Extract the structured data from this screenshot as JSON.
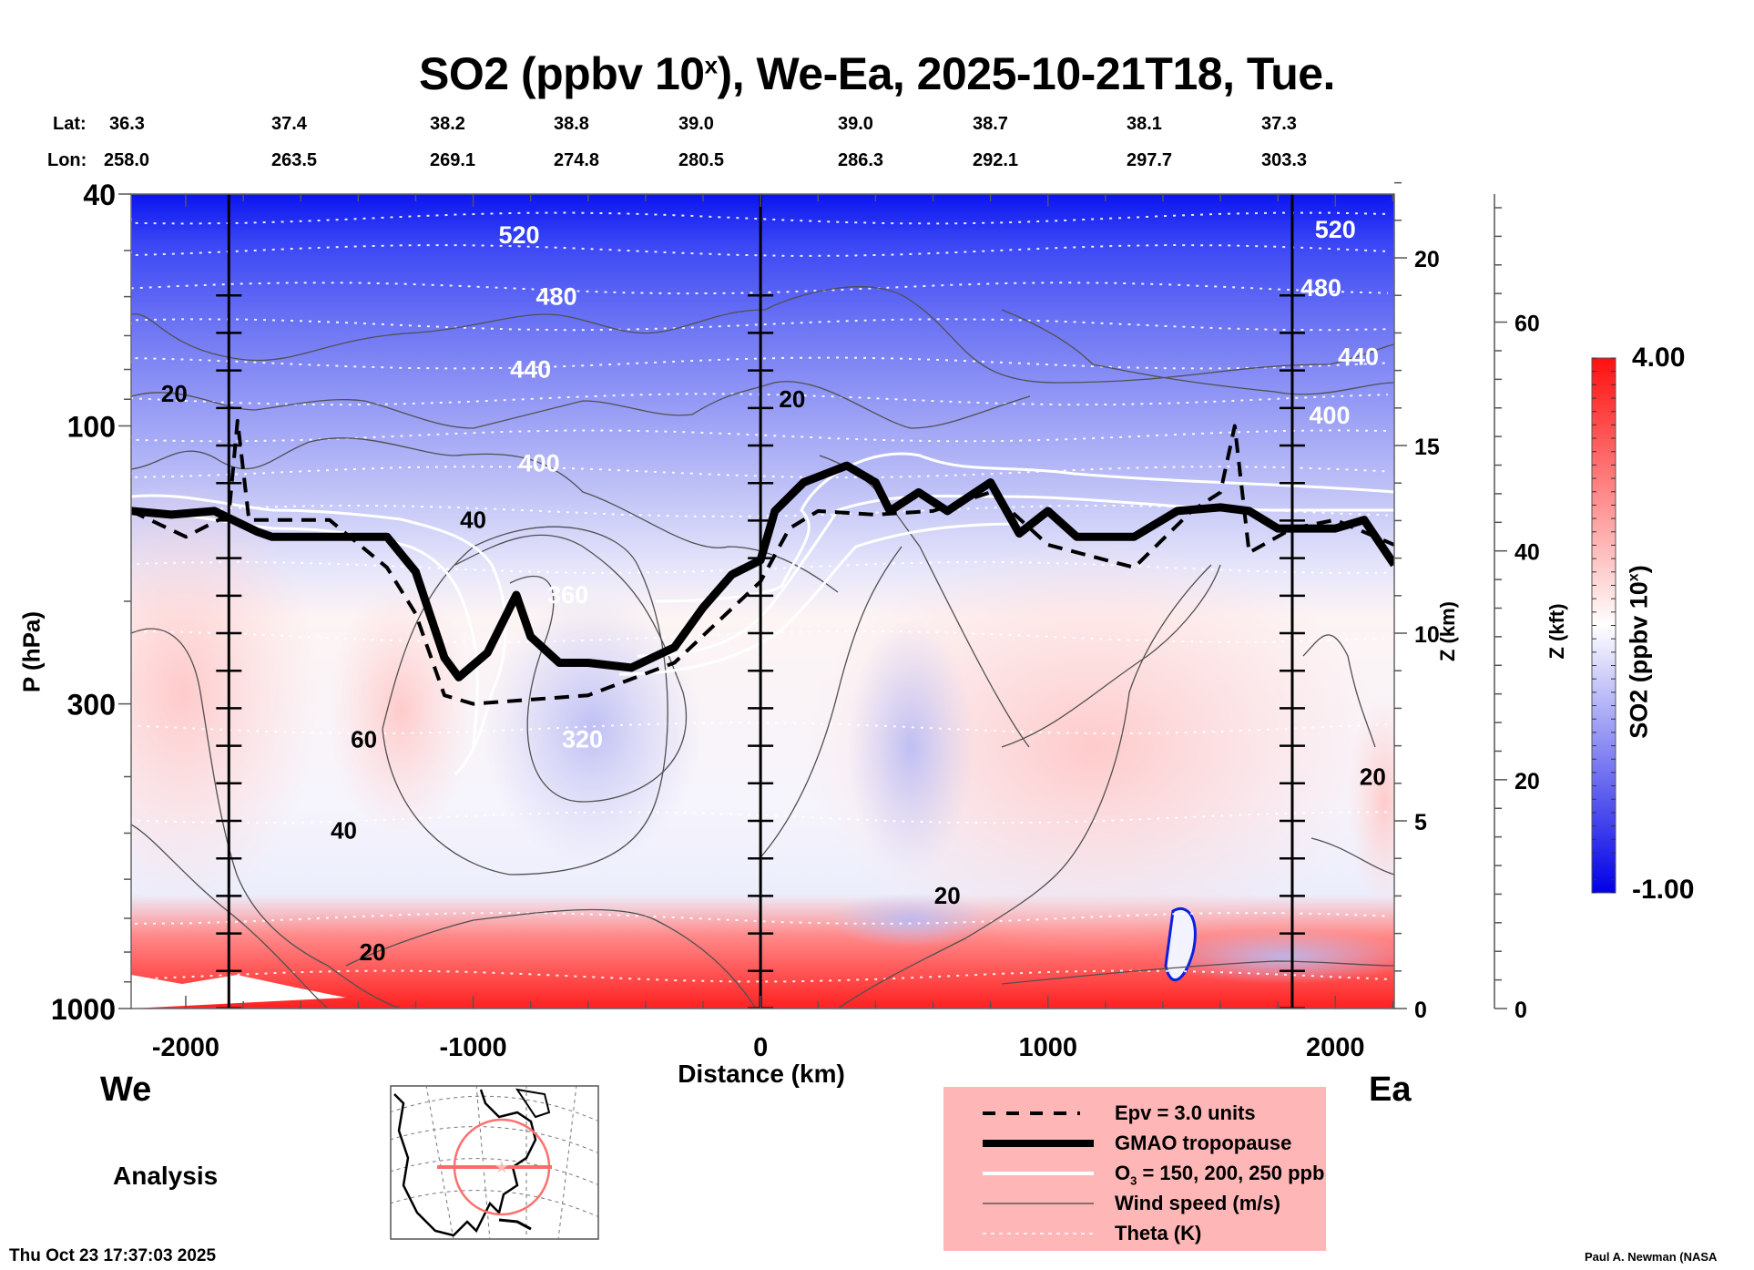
{
  "title": {
    "prefix": "SO2 (ppbv 10",
    "superscript": "x",
    "suffix": "), We-Ea, 2025-10-21T18, Tue."
  },
  "coords": {
    "lat_label": "Lat:",
    "lon_label": "Lon:",
    "lat": [
      "36.3",
      "37.4",
      "38.2",
      "38.8",
      "39.0",
      "39.0",
      "38.7",
      "38.1",
      "37.3"
    ],
    "lon": [
      "258.0",
      "263.5",
      "269.1",
      "274.8",
      "280.5",
      "286.3",
      "292.1",
      "297.7",
      "303.3"
    ]
  },
  "labels": {
    "west": "We",
    "east": "Ea",
    "analysis": "Analysis",
    "timestamp": "Thu Oct 23 17:37:03 2025",
    "credit": "Paul A. Newman (NASA"
  },
  "legend": {
    "items": [
      {
        "style": "dashed",
        "label": "Epv = 3.0 units"
      },
      {
        "style": "thick",
        "label": "GMAO tropopause"
      },
      {
        "style": "white",
        "label_pre": "O",
        "label_sub": "3",
        "label_post": " = 150, 200, 250 ppb"
      },
      {
        "style": "thin",
        "label": "Wind speed (m/s)"
      },
      {
        "style": "dotted",
        "label": "Theta (K)"
      }
    ]
  },
  "colorbar": {
    "title_prefix": "SO2 (ppbv 10",
    "title_sup": "x",
    "title_suffix": ")",
    "max_label": "4.00",
    "min_label": "-1.00",
    "min": -1.0,
    "max": 4.0,
    "low_color": "#0000e6",
    "mid_color": "#ffffff",
    "high_color": "#ff1010"
  },
  "chart_data": {
    "type": "heatmap",
    "title": "SO2 (ppbv 10^x), We-Ea, 2025-10-21T18, Tue.",
    "xlabel": "Distance (km)",
    "ylabel": "P (hPa)",
    "y2label": "Z (km)",
    "y3label": "Z (kft)",
    "xlim": [
      -2190,
      2205
    ],
    "ylim_hpa": [
      1000,
      40
    ],
    "x_ticks": [
      -2000,
      -1000,
      0,
      1000,
      2000
    ],
    "x_tick_labels": [
      "-2000",
      "-1000",
      "0",
      "1000",
      "2000"
    ],
    "y_ticks_hpa": [
      40,
      100,
      300,
      1000
    ],
    "y_tick_labels": [
      "40",
      "100",
      "300",
      "1000"
    ],
    "z_km_ticks": [
      0,
      5,
      10,
      15,
      20
    ],
    "z_km_tick_labels": [
      "0",
      "5",
      "10",
      "15",
      "20"
    ],
    "z_kft_ticks": [
      0,
      20,
      40,
      60
    ],
    "z_kft_tick_labels": [
      "0",
      "20",
      "40",
      "60"
    ],
    "vertical_markers_km": [
      -1850,
      0,
      1850
    ],
    "theta_labels": [
      {
        "value": "520",
        "x_km": -840,
        "p": 47
      },
      {
        "value": "480",
        "x_km": -710,
        "p": 60
      },
      {
        "value": "440",
        "x_km": -800,
        "p": 80
      },
      {
        "value": "400",
        "x_km": -770,
        "p": 116
      },
      {
        "value": "360",
        "x_km": -670,
        "p": 195
      },
      {
        "value": "320",
        "x_km": -620,
        "p": 345
      },
      {
        "value": "520",
        "x_km": 2000,
        "p": 46
      },
      {
        "value": "480",
        "x_km": 1950,
        "p": 58
      },
      {
        "value": "440",
        "x_km": 2080,
        "p": 76
      },
      {
        "value": "400",
        "x_km": 1980,
        "p": 96
      }
    ],
    "wind_labels": [
      {
        "value": "20",
        "x_km": -2040,
        "p": 88
      },
      {
        "value": "40",
        "x_km": -1000,
        "p": 145
      },
      {
        "value": "60",
        "x_km": -1380,
        "p": 345
      },
      {
        "value": "40",
        "x_km": -1450,
        "p": 495
      },
      {
        "value": "20",
        "x_km": -1350,
        "p": 800
      },
      {
        "value": "20",
        "x_km": 110,
        "p": 90
      },
      {
        "value": "20",
        "x_km": 650,
        "p": 640
      },
      {
        "value": "20",
        "x_km": 2130,
        "p": 400
      }
    ],
    "tropopause_hpa": {
      "x": [
        -2190,
        -2050,
        -1900,
        -1750,
        -1700,
        -1500,
        -1300,
        -1200,
        -1100,
        -1050,
        -950,
        -850,
        -800,
        -700,
        -600,
        -450,
        -300,
        -200,
        -100,
        0,
        50,
        150,
        300,
        400,
        450,
        550,
        650,
        800,
        900,
        1000,
        1100,
        1300,
        1450,
        1600,
        1700,
        1800,
        2000,
        2100,
        2205
      ],
      "y": [
        140,
        142,
        140,
        152,
        155,
        155,
        155,
        178,
        250,
        270,
        245,
        195,
        230,
        255,
        255,
        260,
        240,
        205,
        180,
        170,
        140,
        125,
        117,
        125,
        140,
        130,
        140,
        125,
        153,
        140,
        155,
        155,
        140,
        138,
        140,
        150,
        150,
        145,
        173
      ]
    },
    "epv3_hpa": {
      "x": [
        -2190,
        -2000,
        -1850,
        -1820,
        -1780,
        -1700,
        -1500,
        -1300,
        -1200,
        -1100,
        -1000,
        -800,
        -600,
        -300,
        0,
        100,
        200,
        400,
        600,
        800,
        1000,
        1300,
        1500,
        1600,
        1650,
        1700,
        1850,
        2000,
        2205
      ],
      "y": [
        140,
        155,
        142,
        98,
        145,
        145,
        145,
        175,
        210,
        290,
        300,
        295,
        290,
        255,
        185,
        150,
        140,
        142,
        140,
        130,
        160,
        175,
        140,
        130,
        100,
        165,
        150,
        145,
        160
      ]
    },
    "colorbar_range": [
      -1.0,
      4.0
    ]
  }
}
